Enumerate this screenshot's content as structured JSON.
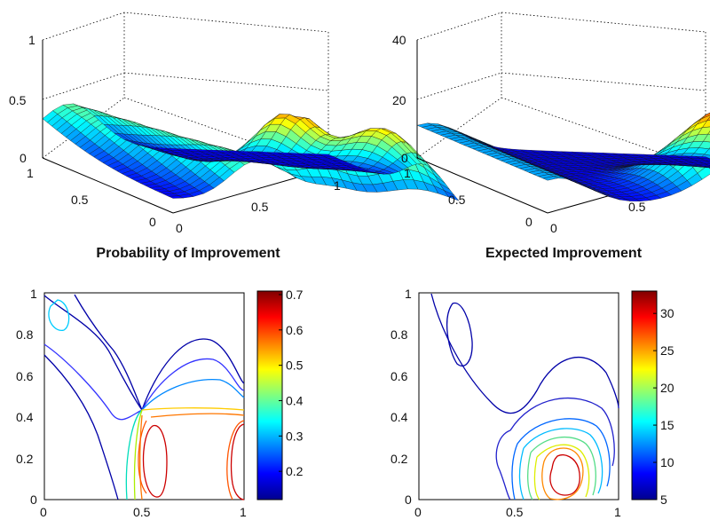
{
  "chart_data": [
    {
      "type": "surface",
      "panel": "top-left",
      "title": "",
      "zlim": [
        0,
        1
      ],
      "z_ticks": [
        "0",
        "0.5",
        "1"
      ],
      "x_ticks": [
        "0",
        "0.5",
        "1"
      ],
      "y_ticks": [
        "0",
        "0.5",
        "1"
      ],
      "colormap": "jet"
    },
    {
      "type": "surface",
      "panel": "top-right",
      "title": "",
      "zlim": [
        0,
        40
      ],
      "z_ticks": [
        "0",
        "20",
        "40"
      ],
      "x_ticks": [
        "0",
        "0.5"
      ],
      "y_ticks": [
        "0",
        "0.5",
        "1"
      ],
      "colormap": "jet"
    },
    {
      "type": "contour",
      "panel": "bottom-left",
      "title": "Probability of Improvement",
      "xlim": [
        0,
        1
      ],
      "ylim": [
        0,
        1
      ],
      "x_ticks": [
        "0",
        "0.5",
        "1"
      ],
      "y_ticks": [
        "0",
        "0.2",
        "0.4",
        "0.6",
        "0.8",
        "1"
      ],
      "colorbar": {
        "min": 0.12,
        "max": 0.71,
        "ticks": [
          "0.2",
          "0.3",
          "0.4",
          "0.5",
          "0.6",
          "0.7"
        ]
      },
      "colormap": "jet"
    },
    {
      "type": "contour",
      "panel": "bottom-right",
      "title": "Expected Improvement",
      "xlim": [
        0,
        1
      ],
      "ylim": [
        0,
        1
      ],
      "x_ticks": [
        "0",
        "0.5",
        "1"
      ],
      "y_ticks": [
        "0",
        "0.2",
        "0.4",
        "0.6",
        "0.8",
        "1"
      ],
      "colorbar": {
        "min": 5,
        "max": 33,
        "ticks": [
          "5",
          "10",
          "15",
          "20",
          "25",
          "30"
        ]
      },
      "colormap": "jet"
    }
  ]
}
